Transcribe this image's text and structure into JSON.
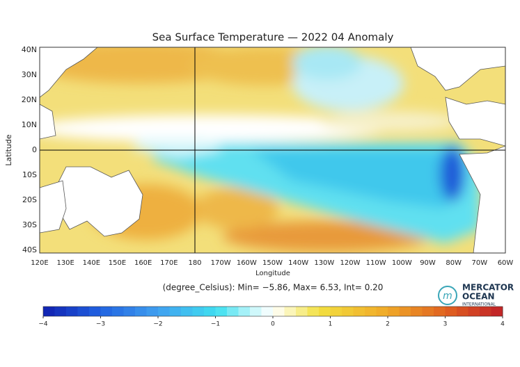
{
  "map": {
    "title": "Sea Surface Temperature — 2022 04 Anomaly",
    "x_axis": {
      "label": "Longitude",
      "ticks": [
        "120E",
        "130E",
        "140E",
        "150E",
        "160E",
        "170E",
        "180",
        "170W",
        "160W",
        "150W",
        "140W",
        "130W",
        "120W",
        "110W",
        "100W",
        "90W",
        "80W",
        "70W",
        "60W"
      ]
    },
    "y_axis": {
      "label": "Latitude",
      "ticks": [
        "40N",
        "30N",
        "20N",
        "10N",
        "0",
        "10S",
        "20S",
        "30S",
        "40S"
      ]
    },
    "stats": "(degree_Celsius): Min= −5.86, Max= 6.53, Int= 0.20",
    "colorbar": {
      "ticks": [
        {
          "value": -4,
          "label": "−4"
        },
        {
          "value": -3,
          "label": "−3"
        },
        {
          "value": -2,
          "label": "−2"
        },
        {
          "value": -1,
          "label": "−1"
        },
        0,
        1,
        2,
        3,
        4
      ]
    },
    "logo": {
      "line1": "MERCATOR",
      "line2": "OCEAN",
      "line3": "INTERNATIONAL"
    }
  }
}
